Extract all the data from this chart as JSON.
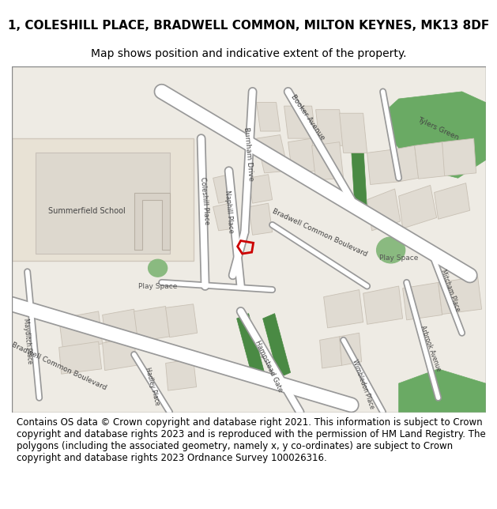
{
  "title_line1": "1, COLESHILL PLACE, BRADWELL COMMON, MILTON KEYNES, MK13 8DF",
  "title_line2": "Map shows position and indicative extent of the property.",
  "footer": "Contains OS data © Crown copyright and database right 2021. This information is subject to Crown copyright and database rights 2023 and is reproduced with the permission of HM Land Registry. The polygons (including the associated geometry, namely x, y co-ordinates) are subject to Crown copyright and database rights 2023 Ordnance Survey 100026316.",
  "bg_color": "#f5f0eb",
  "road_color": "#ffffff",
  "road_outline_color": "#cccccc",
  "building_color": "#e8e0d8",
  "building_outline": "#c0b8b0",
  "green_color": "#6aaa64",
  "green_dark": "#4a8a44",
  "school_color": "#e8e0d0",
  "property_color": "#cc0000",
  "map_bg": "#eeebe4",
  "title_fontsize": 11,
  "subtitle_fontsize": 10,
  "footer_fontsize": 8.5
}
